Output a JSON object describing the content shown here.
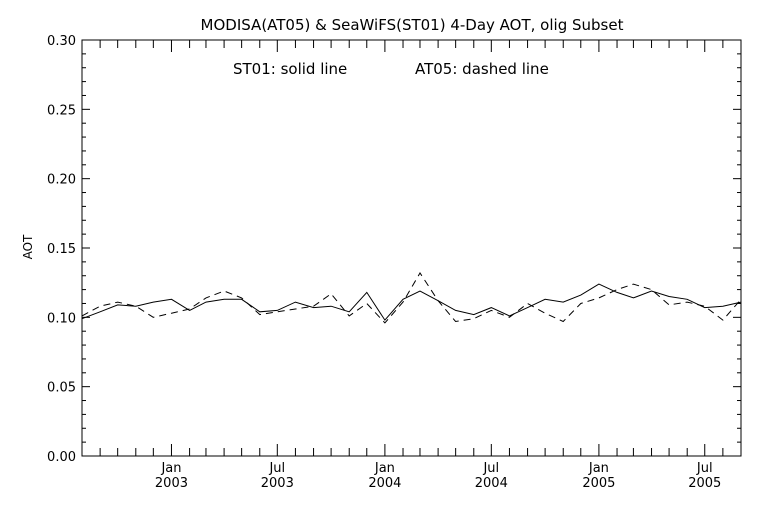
{
  "chart_data": {
    "type": "line",
    "title": "MODISA(AT05) & SeaWiFS(ST01) 4-Day AOT, olig Subset",
    "annotation_left": "ST01: solid line",
    "annotation_right": "AT05: dashed line",
    "xlabel": "",
    "ylabel": "AOT",
    "ylim": [
      0.0,
      0.3
    ],
    "yticks": [
      "0.00",
      "0.05",
      "0.10",
      "0.15",
      "0.20",
      "0.25",
      "0.30"
    ],
    "xlim": [
      "2002-08-01",
      "2005-09-01"
    ],
    "xticks": [
      {
        "date": "2003-01-01",
        "month": "Jan",
        "year": "2003"
      },
      {
        "date": "2003-07-01",
        "month": "Jul",
        "year": "2003"
      },
      {
        "date": "2004-01-01",
        "month": "Jan",
        "year": "2004"
      },
      {
        "date": "2004-07-01",
        "month": "Jul",
        "year": "2004"
      },
      {
        "date": "2005-01-01",
        "month": "Jan",
        "year": "2005"
      },
      {
        "date": "2005-07-01",
        "month": "Jul",
        "year": "2005"
      }
    ],
    "grid": false,
    "x": [
      "2002-08-01",
      "2002-09-01",
      "2002-10-01",
      "2002-11-01",
      "2002-12-01",
      "2003-01-01",
      "2003-02-01",
      "2003-03-01",
      "2003-04-01",
      "2003-05-01",
      "2003-06-01",
      "2003-07-01",
      "2003-08-01",
      "2003-09-01",
      "2003-10-01",
      "2003-11-01",
      "2003-12-01",
      "2004-01-01",
      "2004-02-01",
      "2004-03-01",
      "2004-04-01",
      "2004-05-01",
      "2004-06-01",
      "2004-07-01",
      "2004-08-01",
      "2004-09-01",
      "2004-10-01",
      "2004-11-01",
      "2004-12-01",
      "2005-01-01",
      "2005-02-01",
      "2005-03-01",
      "2005-04-01",
      "2005-05-01",
      "2005-06-01",
      "2005-07-01",
      "2005-08-01",
      "2005-09-01"
    ],
    "series": [
      {
        "name": "ST01",
        "style": "solid",
        "values": [
          0.099,
          0.104,
          0.109,
          0.108,
          0.111,
          0.113,
          0.105,
          0.111,
          0.113,
          0.113,
          0.104,
          0.105,
          0.111,
          0.107,
          0.108,
          0.104,
          0.118,
          0.098,
          0.113,
          0.119,
          0.112,
          0.105,
          0.102,
          0.107,
          0.101,
          0.107,
          0.113,
          0.111,
          0.116,
          0.124,
          0.118,
          0.114,
          0.119,
          0.115,
          0.113,
          0.107,
          0.108,
          0.111
        ]
      },
      {
        "name": "AT05",
        "style": "dashed",
        "values": [
          0.101,
          0.108,
          0.111,
          0.108,
          0.1,
          0.103,
          0.106,
          0.114,
          0.119,
          0.114,
          0.102,
          0.104,
          0.106,
          0.108,
          0.117,
          0.101,
          0.11,
          0.096,
          0.111,
          0.132,
          0.112,
          0.097,
          0.099,
          0.105,
          0.1,
          0.11,
          0.103,
          0.097,
          0.11,
          0.114,
          0.12,
          0.124,
          0.12,
          0.109,
          0.111,
          0.108,
          0.098,
          0.113
        ]
      }
    ]
  }
}
